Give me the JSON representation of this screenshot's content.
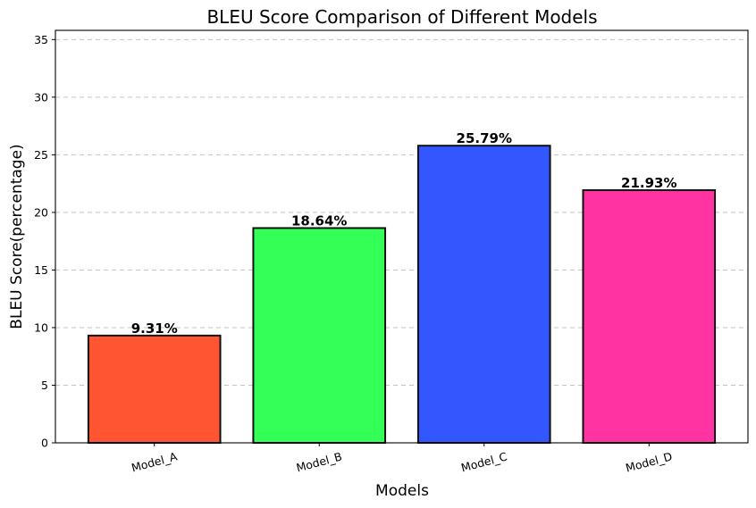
{
  "chart_data": {
    "type": "bar",
    "title": "BLEU Score Comparison of Different Models",
    "xlabel": "Models",
    "ylabel": "BLEU Score(percentage)",
    "categories": [
      "Model_A",
      "Model_B",
      "Model_C",
      "Model_D"
    ],
    "values": [
      9.31,
      18.64,
      25.79,
      21.93
    ],
    "value_labels": [
      "9.31%",
      "18.64%",
      "25.79%",
      "21.93%"
    ],
    "colors": [
      "#ff5533",
      "#33ff57",
      "#3357ff",
      "#ff33a1"
    ],
    "ylim": [
      0,
      35.8
    ],
    "yticks": [
      0,
      5,
      10,
      15,
      20,
      25,
      30,
      35
    ],
    "grid": "y-dashed",
    "x_tick_rotation": 15
  }
}
